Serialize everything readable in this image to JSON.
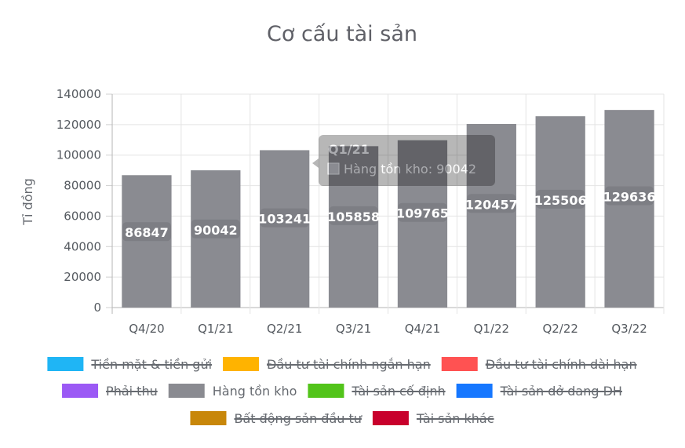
{
  "chart_data": {
    "type": "bar",
    "title": "Cơ cấu tài sản",
    "ylabel": "Tỉ đồng",
    "xlabel": "",
    "ylim": [
      0,
      140000
    ],
    "yticks": [
      0,
      20000,
      40000,
      60000,
      80000,
      100000,
      120000,
      140000
    ],
    "grid": true,
    "categories": [
      "Q4/20",
      "Q1/21",
      "Q2/21",
      "Q3/21",
      "Q4/21",
      "Q1/22",
      "Q2/22",
      "Q3/22"
    ],
    "series": [
      {
        "name": "Hàng tồn kho",
        "color": "#8a8b91",
        "values": [
          86847,
          90042,
          103241,
          105858,
          109765,
          120457,
          125506,
          129636
        ]
      }
    ],
    "legend_position": "bottom",
    "legend": [
      {
        "label": "Tiền mặt & tiền gửi",
        "color": "#1fb5f5",
        "hidden": true
      },
      {
        "label": "Đầu tư tài chính ngắn hạn",
        "color": "#ffb300",
        "hidden": true
      },
      {
        "label": "Đầu tư tài chính dài hạn",
        "color": "#ff5252",
        "hidden": true
      },
      {
        "label": "Phải thu",
        "color": "#9b59f5",
        "hidden": true
      },
      {
        "label": "Hàng tồn kho",
        "color": "#8a8b91",
        "hidden": false
      },
      {
        "label": "Tài sản cố định",
        "color": "#52c41a",
        "hidden": true
      },
      {
        "label": "Tài sản dở dang DH",
        "color": "#1677ff",
        "hidden": true
      },
      {
        "label": "Bất động sản đầu tư",
        "color": "#c8870a",
        "hidden": true
      },
      {
        "label": "Tài sản khác",
        "color": "#c8002c",
        "hidden": true
      }
    ],
    "tooltip": {
      "title": "Q1/21",
      "line": "Hàng tồn kho: 90042",
      "color": "#8a8b91"
    }
  }
}
